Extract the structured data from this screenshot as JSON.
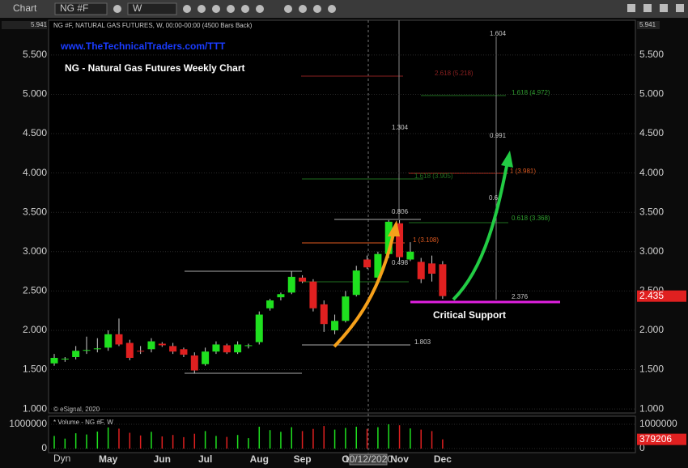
{
  "toolbar": {
    "app": "Chart",
    "symbol": "NG #F",
    "interval": "W"
  },
  "chart_data": {
    "type": "candlestick",
    "info": "NG #F, NATURAL GAS FUTURES, W, 00:00-00:00 (4500 Bars Back)",
    "url": "www.TheTechnicalTraders.com/TTT",
    "title": "NG - Natural Gas Futures Weekly Chart",
    "copyright": "© eSignal, 2020",
    "categories": [
      null,
      null,
      null,
      null,
      null,
      "May",
      null,
      null,
      null,
      null,
      "Jun",
      null,
      null,
      null,
      "Jul",
      null,
      null,
      null,
      null,
      "Aug",
      null,
      null,
      null,
      "Sep",
      null,
      null,
      null,
      "O",
      null,
      null,
      null,
      null,
      "Nov",
      null,
      null,
      null,
      "Dec"
    ],
    "open": [
      1.58,
      1.63,
      1.66,
      1.74,
      1.76,
      1.78,
      1.95,
      1.84,
      1.74,
      1.76,
      1.83,
      1.8,
      1.76,
      1.68,
      1.57,
      1.73,
      1.81,
      1.72,
      1.8,
      1.85,
      2.28,
      2.42,
      2.48,
      2.67,
      2.62,
      2.33,
      2.0,
      2.12,
      2.45,
      2.9,
      2.67,
      2.97,
      3.36,
      2.9,
      2.87,
      2.85,
      2.84
    ],
    "high": [
      1.7,
      1.66,
      1.8,
      1.92,
      1.9,
      2.0,
      2.15,
      1.88,
      1.8,
      1.9,
      1.85,
      1.84,
      1.78,
      1.72,
      1.78,
      1.86,
      1.83,
      1.86,
      1.83,
      2.24,
      2.4,
      2.48,
      2.75,
      2.7,
      2.65,
      2.38,
      2.2,
      2.5,
      2.82,
      2.95,
      3.0,
      3.4,
      3.4,
      3.12,
      2.92,
      2.95,
      2.88
    ],
    "low": [
      1.55,
      1.6,
      1.63,
      1.7,
      1.72,
      1.74,
      1.8,
      1.62,
      1.7,
      1.72,
      1.79,
      1.7,
      1.66,
      1.45,
      1.55,
      1.7,
      1.7,
      1.7,
      1.77,
      1.82,
      2.25,
      2.38,
      2.46,
      2.6,
      2.24,
      1.98,
      1.95,
      2.1,
      2.43,
      2.78,
      2.6,
      2.92,
      2.88,
      2.88,
      2.6,
      2.62,
      2.4
    ],
    "close": [
      1.65,
      1.64,
      1.74,
      1.75,
      1.77,
      1.95,
      1.82,
      1.65,
      1.73,
      1.86,
      1.81,
      1.73,
      1.69,
      1.49,
      1.73,
      1.82,
      1.72,
      1.82,
      1.81,
      2.2,
      2.38,
      2.46,
      2.68,
      2.62,
      2.28,
      2.08,
      2.12,
      2.43,
      2.76,
      2.8,
      2.97,
      3.38,
      2.93,
      3.0,
      2.65,
      2.72,
      2.435
    ],
    "up_color": "#1fe01f",
    "down_color": "#e02020",
    "ylim": [
      0.95,
      5.941
    ],
    "yticks": [
      {
        "value": 1,
        "label": "1.000"
      },
      {
        "value": 1.5,
        "label": "1.500"
      },
      {
        "value": 2,
        "label": "2.000"
      },
      {
        "value": 2.5,
        "label": "2.500"
      },
      {
        "value": 3,
        "label": "3.000"
      },
      {
        "value": 3.5,
        "label": "3.500"
      },
      {
        "value": 4,
        "label": "4.000"
      },
      {
        "value": 4.5,
        "label": "4.500"
      },
      {
        "value": 5,
        "label": "5.000"
      },
      {
        "value": 5.5,
        "label": "5.500"
      }
    ],
    "grid": true,
    "volume_title": "* Volume - NG #F, W",
    "volume": [
      520000,
      410000,
      630000,
      580000,
      700000,
      870000,
      820000,
      650000,
      540000,
      690000,
      500000,
      560000,
      470000,
      610000,
      720000,
      520000,
      480000,
      560000,
      430000,
      900000,
      760000,
      690000,
      880000,
      720000,
      810000,
      930000,
      780000,
      850000,
      900000,
      810000,
      880000,
      1000000,
      960000,
      830000,
      780000,
      720000,
      379206
    ],
    "volume_yticks": [
      0,
      1000000
    ],
    "cursor_date": "10/12/2020",
    "footer": "Dyn",
    "annotations": [
      "2.618 (5.218)",
      "1.304",
      "1.618 (3.905)",
      "0.806",
      "1 (3.108)",
      "0.498",
      "1.803",
      "1.604",
      "1.618 (4.972)",
      "0.991",
      "1 (3.981)",
      "0.6",
      "0.618 (3.368)",
      "2.376",
      "Critical Support"
    ]
  }
}
